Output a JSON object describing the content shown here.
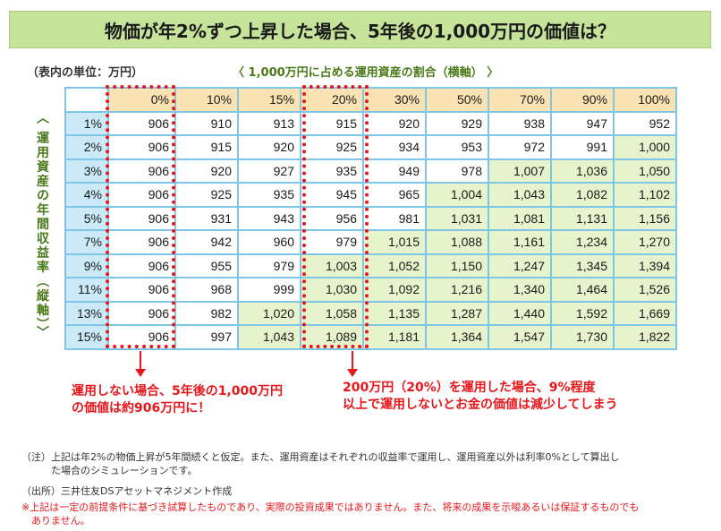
{
  "title": "物価が年2%ずつ上昇した場合、5年後の1,000万円の価値は？",
  "unit_label": "（表内の単位：万円）",
  "axis_horizontal": {
    "open": "〈",
    "text": "1,000万円に占める運用資産の割合（横軸）",
    "close": "〉"
  },
  "axis_vertical": "〈 運用資産の年間収益率（縦軸）〉",
  "columns": [
    "0%",
    "10%",
    "15%",
    "20%",
    "30%",
    "50%",
    "70%",
    "90%",
    "100%"
  ],
  "rows": [
    {
      "rate": "1%",
      "values": [
        "906",
        "910",
        "913",
        "915",
        "920",
        "929",
        "938",
        "947",
        "952"
      ]
    },
    {
      "rate": "2%",
      "values": [
        "906",
        "915",
        "920",
        "925",
        "934",
        "953",
        "972",
        "991",
        "1,000"
      ]
    },
    {
      "rate": "3%",
      "values": [
        "906",
        "920",
        "927",
        "935",
        "949",
        "978",
        "1,007",
        "1,036",
        "1,050"
      ]
    },
    {
      "rate": "4%",
      "values": [
        "906",
        "925",
        "935",
        "945",
        "965",
        "1,004",
        "1,043",
        "1,082",
        "1,102"
      ]
    },
    {
      "rate": "5%",
      "values": [
        "906",
        "931",
        "943",
        "956",
        "981",
        "1,031",
        "1,081",
        "1,131",
        "1,156"
      ]
    },
    {
      "rate": "7%",
      "values": [
        "906",
        "942",
        "960",
        "979",
        "1,015",
        "1,088",
        "1,161",
        "1,234",
        "1,270"
      ]
    },
    {
      "rate": "9%",
      "values": [
        "906",
        "955",
        "979",
        "1,003",
        "1,052",
        "1,150",
        "1,247",
        "1,345",
        "1,394"
      ]
    },
    {
      "rate": "11%",
      "values": [
        "906",
        "968",
        "999",
        "1,030",
        "1,092",
        "1,216",
        "1,340",
        "1,464",
        "1,526"
      ]
    },
    {
      "rate": "13%",
      "values": [
        "906",
        "982",
        "1,020",
        "1,058",
        "1,135",
        "1,287",
        "1,440",
        "1,592",
        "1,669"
      ]
    },
    {
      "rate": "15%",
      "values": [
        "906",
        "997",
        "1,043",
        "1,089",
        "1,181",
        "1,364",
        "1,547",
        "1,730",
        "1,822"
      ]
    }
  ],
  "highlight_threshold": 1000,
  "colors": {
    "title_bg": "#c6e39a",
    "header_bg": "#fbe2b3",
    "row_header_bg": "#cbe9f7",
    "highlight_bg": "#e6f3cc",
    "grid_border": "#7fc6e6",
    "callout_red": "#e8161b"
  },
  "callout_left": [
    "運用しない場合、5年後の1,000万円",
    "の価値は約906万円に！"
  ],
  "callout_right": [
    "200万円（20%）を運用した場合、9%程度",
    "以上で運用しないとお金の価値は減少してしまう"
  ],
  "footnotes": {
    "note_1": "（注）上記は年2%の物価上昇が5年間続くと仮定。また、運用資産はそれぞれの収益率で運用し、運用資産以外は利率0%として算出し",
    "note_2": "　　　た場合のシミュレーションです。",
    "source": "（出所）三井住友DSアセットマネジメント作成",
    "disclaimer_1": "※上記は一定の前提条件に基づき試算したものであり、実際の投資成果ではありません。また、将来の成果を示唆あるいは保証するものでも",
    "disclaimer_2": "　ありません。"
  }
}
